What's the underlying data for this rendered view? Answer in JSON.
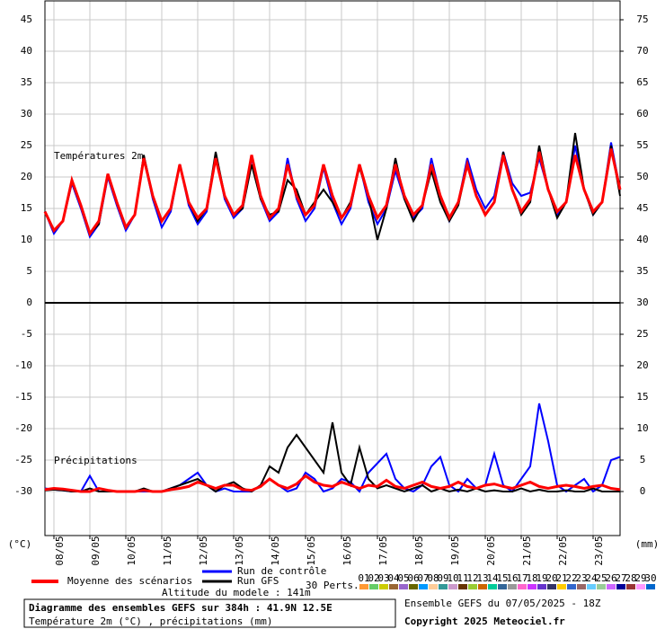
{
  "chart_data": {
    "type": "line",
    "x": [
      0,
      6,
      12,
      18,
      24,
      30,
      36,
      42,
      48,
      54,
      60,
      66,
      72,
      78,
      84,
      90,
      96,
      102,
      108,
      114,
      120,
      126,
      132,
      138,
      144,
      150,
      156,
      162,
      168,
      174,
      180,
      186,
      192,
      198,
      204,
      210,
      216,
      222,
      228,
      234,
      240,
      246,
      252,
      258,
      264,
      270,
      276,
      282,
      288,
      294,
      300,
      306,
      312,
      318,
      324,
      330,
      336,
      342,
      348,
      354,
      360,
      366,
      372,
      378,
      384
    ],
    "xlim": [
      0,
      384
    ],
    "xticks": [
      {
        "value": 6,
        "label": "08/05"
      },
      {
        "value": 30,
        "label": "09/05"
      },
      {
        "value": 54,
        "label": "10/05"
      },
      {
        "value": 78,
        "label": "11/05"
      },
      {
        "value": 102,
        "label": "12/05"
      },
      {
        "value": 126,
        "label": "13/05"
      },
      {
        "value": 150,
        "label": "14/05"
      },
      {
        "value": 174,
        "label": "15/05"
      },
      {
        "value": 198,
        "label": "16/05"
      },
      {
        "value": 222,
        "label": "17/05"
      },
      {
        "value": 246,
        "label": "18/05"
      },
      {
        "value": 270,
        "label": "19/05"
      },
      {
        "value": 294,
        "label": "20/05"
      },
      {
        "value": 318,
        "label": "21/05"
      },
      {
        "value": 342,
        "label": "22/05"
      },
      {
        "value": 366,
        "label": "23/05"
      }
    ],
    "ylim": [
      -37,
      48
    ],
    "yticks": [
      -30,
      -25,
      -20,
      -15,
      -10,
      -5,
      0,
      5,
      10,
      15,
      20,
      25,
      30,
      35,
      40,
      45
    ],
    "y2lim": [
      -7,
      78
    ],
    "y2ticks": [
      0,
      5,
      10,
      15,
      20,
      25,
      30,
      35,
      40,
      45,
      50,
      55,
      60,
      65,
      70,
      75
    ],
    "grid": true,
    "y_unit": "(°C)",
    "y2_unit": "(mm)",
    "panel_labels": [
      "Températures 2m",
      "Précipitations"
    ],
    "series": [
      {
        "name": "Run de contrôle",
        "color": "#0000ff",
        "values": [
          14.5,
          11,
          13,
          19,
          15,
          10.5,
          12.5,
          20,
          15.5,
          11.5,
          14,
          23,
          16.5,
          12,
          14.5,
          22,
          15.5,
          12.5,
          14.5,
          23.5,
          16.5,
          13.5,
          15,
          23,
          16.5,
          13,
          14.5,
          23,
          16.5,
          13,
          15,
          21.5,
          16,
          12.5,
          15,
          22,
          16,
          12.5,
          15,
          21,
          16.5,
          13.5,
          15,
          23,
          17,
          13,
          16,
          23,
          18,
          15,
          17,
          24,
          19,
          17,
          17.5,
          23,
          18,
          14,
          16,
          25,
          18,
          14,
          16,
          25.5,
          18
        ],
        "precipitation": [
          0.5,
          0.3,
          0.2,
          0,
          0,
          2.5,
          0,
          0,
          0,
          0,
          0,
          0,
          0,
          0,
          0.5,
          1,
          2,
          3,
          1,
          0,
          0.5,
          0,
          0,
          0,
          1,
          2,
          1,
          0,
          0.5,
          3,
          2,
          0,
          0.5,
          2,
          1.5,
          0,
          3,
          4.5,
          6,
          2,
          0.5,
          0,
          1,
          4,
          5.5,
          1,
          0,
          2,
          0.5,
          1,
          6,
          1,
          0,
          2,
          4,
          14,
          8,
          1,
          0,
          1,
          2,
          0,
          1,
          5,
          5.5
        ]
      },
      {
        "name": "Run GFS",
        "color": "#000000",
        "values": [
          14.5,
          11.5,
          13,
          19.5,
          15.5,
          11,
          12.5,
          20.5,
          16,
          12,
          14,
          23.5,
          17,
          13,
          15,
          22,
          16,
          13,
          15,
          24,
          17,
          14,
          15,
          22,
          16.5,
          14,
          14.5,
          19.5,
          18,
          14,
          16,
          18,
          16,
          13.5,
          16,
          21.5,
          17,
          10,
          15,
          23,
          16.5,
          13,
          15.5,
          21,
          16,
          13,
          15.5,
          22,
          17,
          14,
          16,
          24,
          18,
          14,
          16,
          25,
          18,
          13.5,
          16,
          27,
          18,
          14,
          16,
          25,
          17
        ],
        "precipitation": [
          0.2,
          0.3,
          0.2,
          0,
          0,
          0.5,
          0,
          0,
          0,
          0,
          0,
          0.5,
          0,
          0,
          0.5,
          1,
          1.5,
          2,
          1,
          0,
          1,
          1.5,
          0.5,
          0,
          1,
          4,
          3,
          7,
          9,
          7,
          5,
          3,
          11,
          3,
          1,
          7,
          2,
          0.5,
          1,
          0.5,
          0,
          0.5,
          1,
          0,
          0.5,
          0,
          0.3,
          0,
          0.5,
          0,
          0.2,
          0,
          0,
          0.5,
          0,
          0.3,
          0,
          0,
          0.2,
          0,
          0,
          0.5,
          0,
          0,
          0
        ]
      },
      {
        "name": "Moyenne des scénarios",
        "color": "#ff0000",
        "values": [
          14.5,
          11.5,
          13,
          19.5,
          15.5,
          11,
          13,
          20.5,
          16,
          12,
          14,
          23,
          17,
          13,
          15,
          22,
          16,
          13.5,
          15,
          23,
          17,
          14,
          15.5,
          23.5,
          17,
          13.5,
          15,
          22,
          17,
          14,
          15.5,
          22,
          17,
          13.5,
          15.5,
          22,
          17,
          13.5,
          15.5,
          22,
          17,
          14,
          15.5,
          22,
          17,
          13.5,
          16,
          22,
          17,
          14,
          16,
          23.5,
          18,
          14.5,
          16.5,
          24,
          18,
          14.5,
          16,
          23.5,
          18,
          14.5,
          16,
          24.5,
          18
        ],
        "precipitation": [
          0.3,
          0.5,
          0.4,
          0.2,
          0,
          0,
          0.5,
          0.2,
          0,
          0,
          0,
          0.2,
          0,
          0,
          0.3,
          0.5,
          0.8,
          1.5,
          1,
          0.5,
          1,
          1,
          0.3,
          0.2,
          0.8,
          2,
          1,
          0.5,
          1.2,
          2.5,
          1.5,
          1,
          0.8,
          1.5,
          1,
          0.5,
          1,
          0.8,
          1.8,
          0.8,
          0.5,
          1,
          1.5,
          0.8,
          0.5,
          0.8,
          1.5,
          0.8,
          0.5,
          1,
          1.2,
          0.8,
          0.5,
          1,
          1.5,
          0.8,
          0.5,
          0.8,
          1,
          0.8,
          0.5,
          0.8,
          1,
          0.5,
          0.3
        ]
      }
    ],
    "perturbations": {
      "label": "30 Perts.",
      "items": [
        {
          "label": "01",
          "color": "#ff9933"
        },
        {
          "label": "02",
          "color": "#66cc66"
        },
        {
          "label": "03",
          "color": "#cccc00"
        },
        {
          "label": "04",
          "color": "#996633"
        },
        {
          "label": "05",
          "color": "#9966cc"
        },
        {
          "label": "06",
          "color": "#666600"
        },
        {
          "label": "07",
          "color": "#0099ff"
        },
        {
          "label": "08",
          "color": "#ffcc99"
        },
        {
          "label": "09",
          "color": "#339999"
        },
        {
          "label": "10",
          "color": "#cc99cc"
        },
        {
          "label": "11",
          "color": "#663300"
        },
        {
          "label": "12",
          "color": "#99cc33"
        },
        {
          "label": "13",
          "color": "#cc6600"
        },
        {
          "label": "14",
          "color": "#00cc99"
        },
        {
          "label": "15",
          "color": "#336699"
        },
        {
          "label": "16",
          "color": "#999999"
        },
        {
          "label": "17",
          "color": "#ff66cc"
        },
        {
          "label": "18",
          "color": "#cc33ff"
        },
        {
          "label": "19",
          "color": "#6633cc"
        },
        {
          "label": "20",
          "color": "#333366"
        },
        {
          "label": "21",
          "color": "#ffcc00"
        },
        {
          "label": "22",
          "color": "#3366cc"
        },
        {
          "label": "23",
          "color": "#996666"
        },
        {
          "label": "24",
          "color": "#66ccff"
        },
        {
          "label": "25",
          "color": "#99cc99"
        },
        {
          "label": "26",
          "color": "#cc66ff"
        },
        {
          "label": "27",
          "color": "#000099"
        },
        {
          "label": "28",
          "color": "#993333"
        },
        {
          "label": "29",
          "color": "#ff99ff"
        },
        {
          "label": "30",
          "color": "#0066cc"
        }
      ]
    },
    "altitude": "Altitude du modele : 141m",
    "title": "Diagramme des ensembles GEFS sur 384h : 41.9N 12.5E",
    "subtitle": "Température 2m (°C) , précipitations (mm)",
    "run_info": "Ensemble GEFS du 07/05/2025 - 18Z",
    "copyright": "Copyright 2025 Meteociel.fr"
  }
}
